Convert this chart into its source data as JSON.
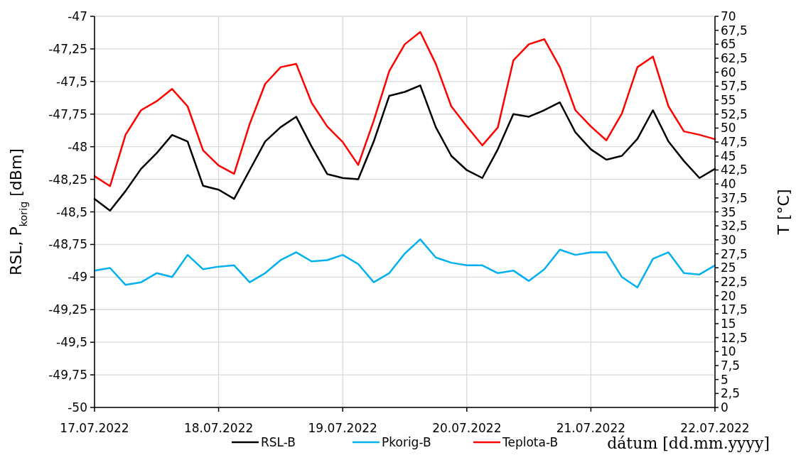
{
  "chart_data": {
    "type": "line",
    "xlabel": "dátum [dd.mm.yyyy]",
    "ylabel": "RSL, P$_{korig}$ [dBm]",
    "y2label": "T [°C]",
    "x": [
      "2022-07-17T00:00",
      "2022-07-17T03:00",
      "2022-07-17T06:00",
      "2022-07-17T09:00",
      "2022-07-17T12:00",
      "2022-07-17T15:00",
      "2022-07-17T18:00",
      "2022-07-17T21:00",
      "2022-07-18T00:00",
      "2022-07-18T03:00",
      "2022-07-18T06:00",
      "2022-07-18T09:00",
      "2022-07-18T12:00",
      "2022-07-18T15:00",
      "2022-07-18T18:00",
      "2022-07-18T21:00",
      "2022-07-19T00:00",
      "2022-07-19T03:00",
      "2022-07-19T06:00",
      "2022-07-19T09:00",
      "2022-07-19T12:00",
      "2022-07-19T15:00",
      "2022-07-19T18:00",
      "2022-07-19T21:00",
      "2022-07-20T00:00",
      "2022-07-20T03:00",
      "2022-07-20T06:00",
      "2022-07-20T09:00",
      "2022-07-20T12:00",
      "2022-07-20T15:00",
      "2022-07-20T18:00",
      "2022-07-20T21:00",
      "2022-07-21T00:00",
      "2022-07-21T03:00",
      "2022-07-21T06:00",
      "2022-07-21T09:00",
      "2022-07-21T12:00",
      "2022-07-21T15:00",
      "2022-07-21T18:00",
      "2022-07-21T21:00",
      "2022-07-22T00:00"
    ],
    "series": [
      {
        "name": "RSL-B",
        "color": "#000000",
        "values": [
          -48.4,
          -48.49,
          -48.34,
          -48.17,
          -48.05,
          -47.91,
          -47.96,
          -48.3,
          -48.33,
          -48.4,
          -48.18,
          -47.96,
          -47.85,
          -47.77,
          -48.0,
          -48.21,
          -48.24,
          -48.25,
          -47.96,
          -47.61,
          -47.58,
          -47.53,
          -47.85,
          -48.07,
          -48.18,
          -48.24,
          -48.02,
          -47.75,
          -47.77,
          -47.72,
          -47.66,
          -47.89,
          -48.02,
          -48.1,
          -48.07,
          -47.94,
          -47.72,
          -47.96,
          -48.11,
          -48.24,
          -48.17
        ]
      },
      {
        "name": "Pkorig-B",
        "color": "#00b0f0",
        "values": [
          -48.95,
          -48.93,
          -49.06,
          -49.04,
          -48.97,
          -49.0,
          -48.83,
          -48.94,
          -48.92,
          -48.91,
          -49.04,
          -48.97,
          -48.87,
          -48.81,
          -48.88,
          -48.87,
          -48.83,
          -48.9,
          -49.04,
          -48.97,
          -48.82,
          -48.71,
          -48.85,
          -48.89,
          -48.91,
          -48.91,
          -48.97,
          -48.95,
          -49.03,
          -48.94,
          -48.79,
          -48.83,
          -48.81,
          -48.81,
          -49.0,
          -49.08,
          -48.86,
          -48.81,
          -48.97,
          -48.98,
          -48.91
        ]
      },
      {
        "name": "Teplota-B",
        "color": "#ff0000",
        "axis": "y2",
        "values": [
          41.4,
          39.6,
          48.8,
          53.2,
          54.8,
          57.0,
          53.9,
          46.0,
          43.3,
          41.8,
          50.7,
          57.9,
          60.9,
          61.5,
          54.5,
          50.3,
          47.5,
          43.4,
          51.3,
          60.2,
          65.0,
          67.2,
          61.5,
          53.9,
          50.3,
          46.9,
          50.1,
          62.1,
          65.0,
          65.9,
          60.9,
          53.2,
          50.3,
          47.8,
          52.6,
          60.9,
          62.8,
          53.9,
          49.4,
          48.8,
          48.0
        ]
      }
    ],
    "xlim": [
      "2022-07-17",
      "2022-07-22"
    ],
    "xticks": [
      {
        "value": "2022-07-17",
        "label": "17.07.2022"
      },
      {
        "value": "2022-07-18",
        "label": "18.07.2022"
      },
      {
        "value": "2022-07-19",
        "label": "19.07.2022"
      },
      {
        "value": "2022-07-20",
        "label": "20.07.2022"
      },
      {
        "value": "2022-07-21",
        "label": "21.07.2022"
      },
      {
        "value": "2022-07-22",
        "label": "22.07.2022"
      }
    ],
    "ylim": [
      -50,
      -47
    ],
    "yticks": [
      -50,
      {
        "value": -49.75,
        "label": "-49,75"
      },
      {
        "value": -49.5,
        "label": "-49,5"
      },
      {
        "value": -49.25,
        "label": "-49,25"
      },
      -49,
      {
        "value": -48.75,
        "label": "-48,75"
      },
      {
        "value": -48.5,
        "label": "-48,5"
      },
      {
        "value": -48.25,
        "label": "-48,25"
      },
      -48,
      {
        "value": -47.75,
        "label": "-47,75"
      },
      {
        "value": -47.5,
        "label": "-47,5"
      },
      {
        "value": -47.25,
        "label": "-47,25"
      },
      -47
    ],
    "y2lim": [
      0,
      70
    ],
    "y2ticks": [
      0,
      {
        "value": 2.5,
        "label": "2,5"
      },
      5,
      {
        "value": 7.5,
        "label": "7,5"
      },
      10,
      {
        "value": 12.5,
        "label": "12,5"
      },
      15,
      {
        "value": 17.5,
        "label": "17,5"
      },
      20,
      {
        "value": 22.5,
        "label": "22,5"
      },
      25,
      {
        "value": 27.5,
        "label": "27,5"
      },
      30,
      {
        "value": 32.5,
        "label": "32,5"
      },
      35,
      {
        "value": 37.5,
        "label": "37,5"
      },
      40,
      {
        "value": 42.5,
        "label": "42,5"
      },
      45,
      {
        "value": 47.5,
        "label": "47,5"
      },
      50,
      {
        "value": 52.5,
        "label": "52,5"
      },
      55,
      {
        "value": 57.5,
        "label": "57,5"
      },
      60,
      {
        "value": 62.5,
        "label": "62,5"
      },
      65,
      {
        "value": 67.5,
        "label": "67,5"
      },
      70
    ],
    "grid": true,
    "legend": "bottom",
    "line_style": "solid"
  }
}
